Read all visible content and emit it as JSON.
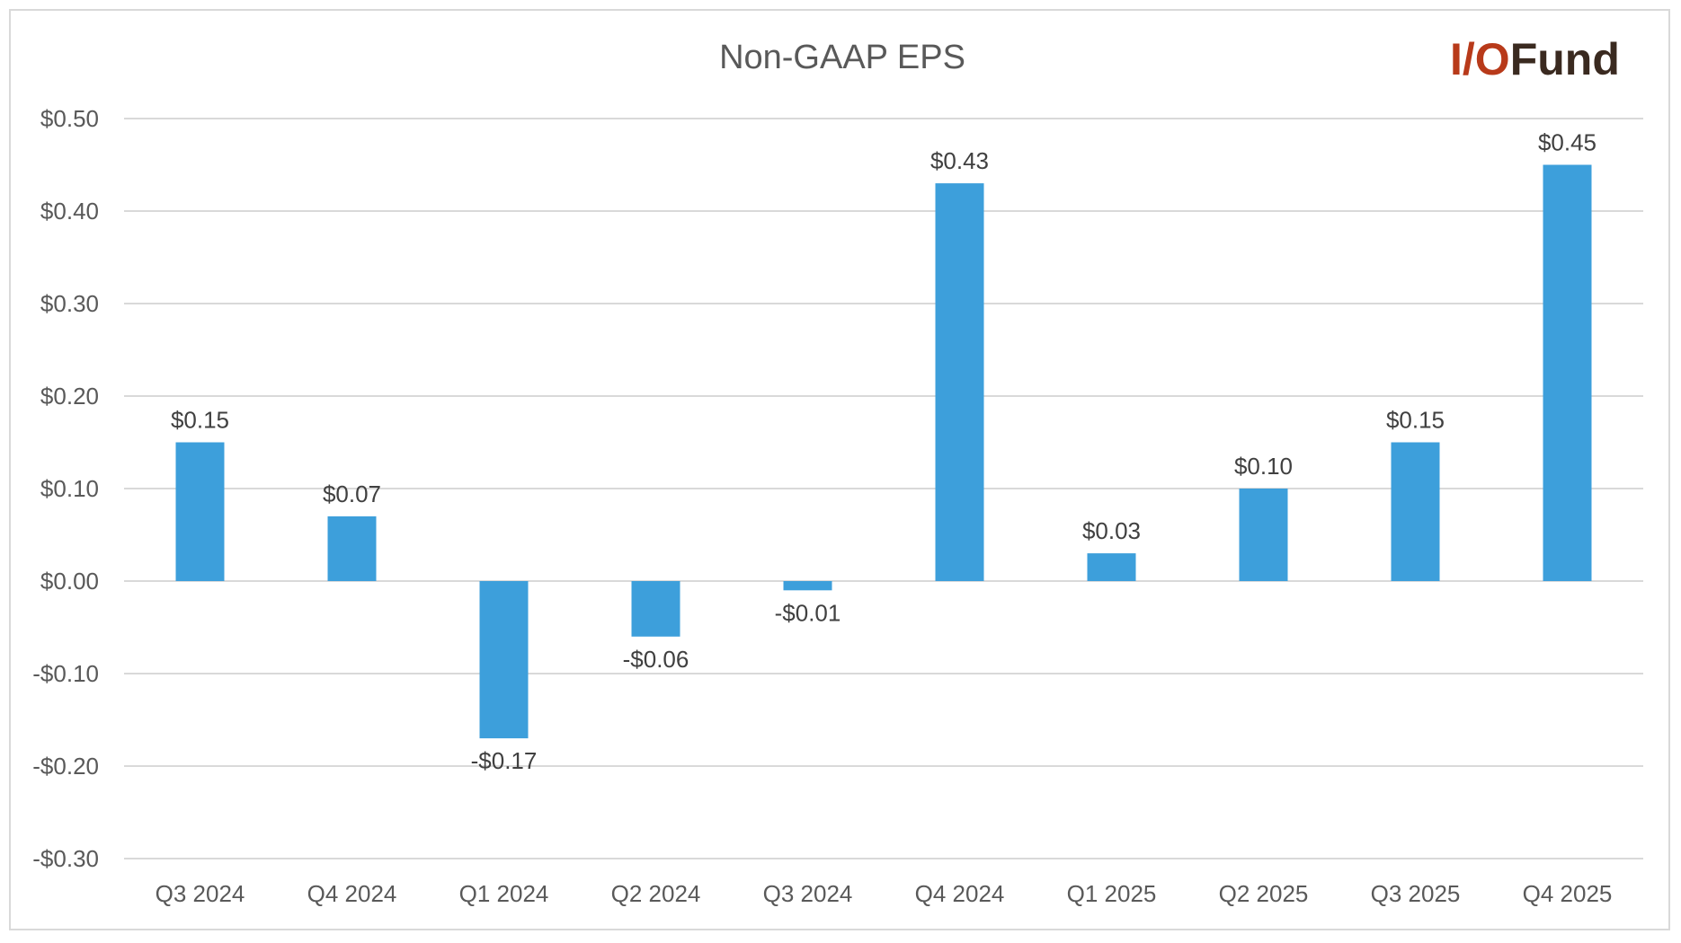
{
  "chart_data": {
    "type": "bar",
    "title": "Non-GAAP EPS",
    "categories": [
      "Q3 2024",
      "Q4 2024",
      "Q1 2024",
      "Q2 2024",
      "Q3 2024",
      "Q4 2024",
      "Q1 2025",
      "Q2 2025",
      "Q3 2025",
      "Q4 2025"
    ],
    "values": [
      0.15,
      0.07,
      -0.17,
      -0.06,
      -0.01,
      0.43,
      0.03,
      0.1,
      0.15,
      0.45
    ],
    "data_labels": [
      "$0.15",
      "$0.07",
      "-$0.17",
      "-$0.06",
      "-$0.01",
      "$0.43",
      "$0.03",
      "$0.10",
      "$0.15",
      "$0.45"
    ],
    "y_ticks": [
      0.5,
      0.4,
      0.3,
      0.2,
      0.1,
      0.0,
      -0.1,
      -0.2,
      -0.3
    ],
    "y_tick_labels": [
      "$0.50",
      "$0.40",
      "$0.30",
      "$0.20",
      "$0.10",
      "$0.00",
      "-$0.10",
      "-$0.20",
      "-$0.30"
    ],
    "ylim": [
      -0.3,
      0.5
    ],
    "xlabel": "",
    "ylabel": "",
    "grid": true,
    "bar_color": "#3d9fdb",
    "grid_color": "#d9d9d9"
  },
  "logo": {
    "part1": "I/O",
    "part2": "Fund",
    "color1": "#b83a1a",
    "color2": "#3a2a20"
  }
}
